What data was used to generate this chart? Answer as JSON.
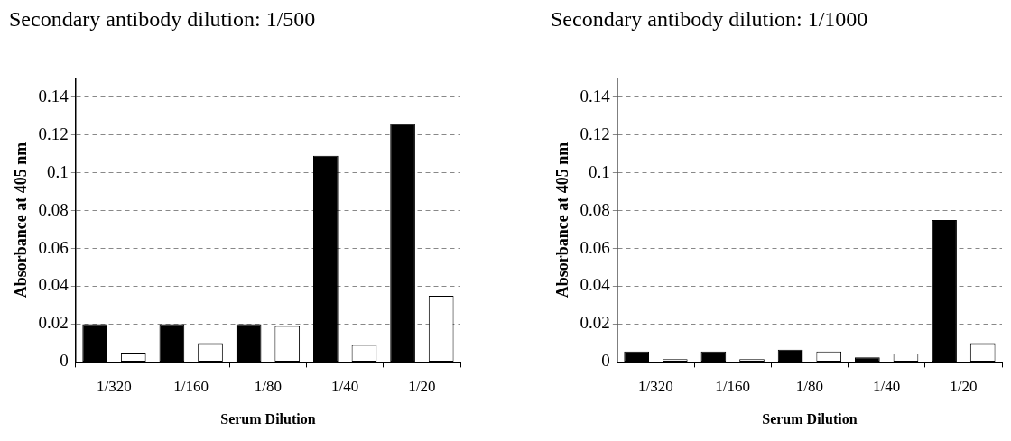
{
  "chart_data": [
    {
      "type": "bar",
      "title": "Secondary antibody dilution: 1/500",
      "xlabel": "Serum Dilution",
      "ylabel": "Absorbance at 405 nm",
      "categories": [
        "1/320",
        "1/160",
        "1/80",
        "1/40",
        "1/20"
      ],
      "series": [
        {
          "color": "#000000",
          "values": [
            0.02,
            0.02,
            0.02,
            0.109,
            0.126
          ]
        },
        {
          "color": "#ffffff",
          "values": [
            0.005,
            0.01,
            0.019,
            0.009,
            0.035
          ]
        }
      ],
      "ylim": [
        0,
        0.15
      ],
      "yticks": [
        0,
        0.02,
        0.04,
        0.06,
        0.08,
        0.1,
        0.12,
        0.14
      ],
      "grid": "y",
      "legend": false
    },
    {
      "type": "bar",
      "title": "Secondary antibody dilution: 1/1000",
      "xlabel": "Serum Dilution",
      "ylabel": "Absorbance at 405 nm",
      "categories": [
        "1/320",
        "1/160",
        "1/80",
        "1/40",
        "1/20"
      ],
      "series": [
        {
          "color": "#000000",
          "values": [
            0.0055,
            0.0055,
            0.0065,
            0.0025,
            0.075
          ]
        },
        {
          "color": "#ffffff",
          "values": [
            0.0015,
            0.0015,
            0.0055,
            0.0045,
            0.01
          ]
        }
      ],
      "ylim": [
        0,
        0.15
      ],
      "yticks": [
        0,
        0.02,
        0.04,
        0.06,
        0.08,
        0.1,
        0.12,
        0.14
      ],
      "grid": "y",
      "legend": false
    }
  ]
}
